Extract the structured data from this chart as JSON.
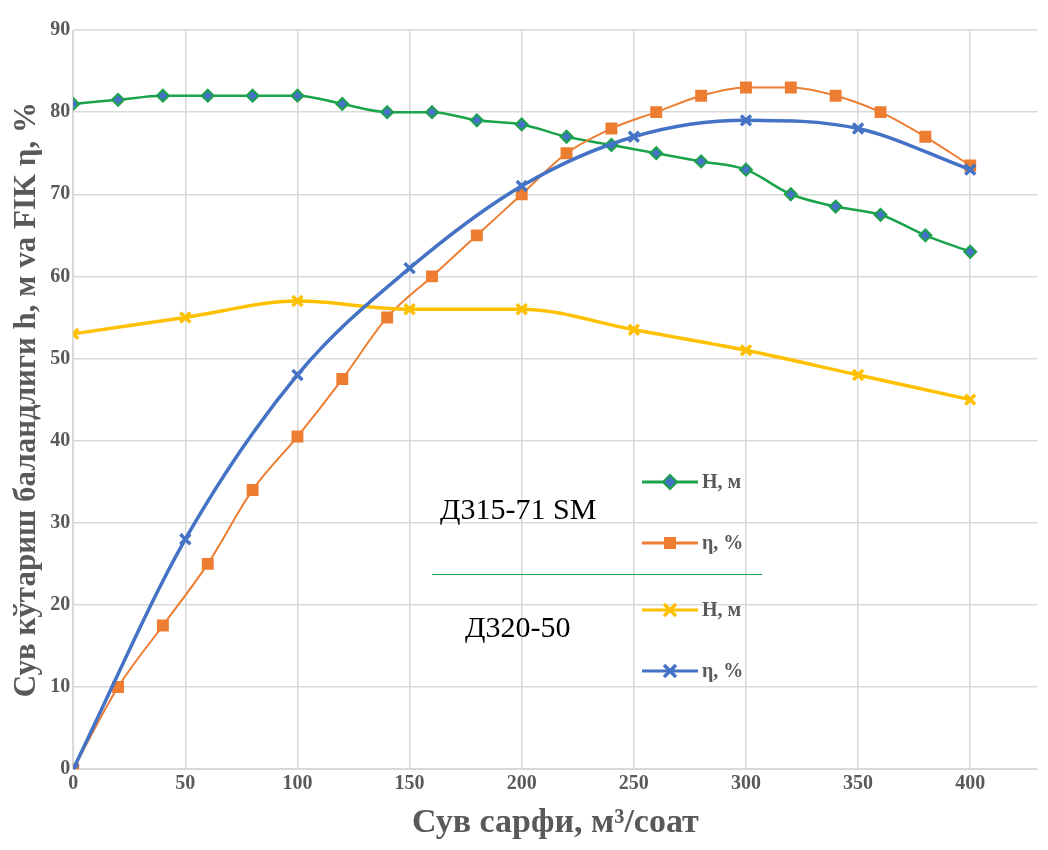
{
  "chart_data": {
    "type": "line",
    "xlabel": "Сув сарфи, м³/соат",
    "ylabel": "Сув кўтариш баландлиги h, м va FIK η, %",
    "xlim": [
      0,
      430
    ],
    "xticks": [
      0,
      50,
      100,
      150,
      200,
      250,
      300,
      350,
      400
    ],
    "ylim": [
      0,
      90
    ],
    "yticks": [
      0,
      10,
      20,
      30,
      40,
      50,
      60,
      70,
      80,
      90
    ],
    "grid": true,
    "legend": "right",
    "annotations": [
      "Д315-71 SM",
      "Д320-50"
    ],
    "series": [
      {
        "name": "H, м",
        "color": "#1aa34a",
        "marker": "diamond",
        "x": [
          0,
          20,
          40,
          60,
          80,
          100,
          120,
          140,
          160,
          180,
          200,
          220,
          240,
          260,
          280,
          300,
          320,
          340,
          360,
          380,
          400
        ],
        "values": [
          81,
          81.5,
          82,
          82,
          82,
          82,
          81,
          80,
          80,
          79,
          78.5,
          77,
          76,
          75,
          74,
          73,
          70,
          68.5,
          67.5,
          65,
          63
        ]
      },
      {
        "name": "η, %",
        "color": "#ed7d31",
        "marker": "square",
        "x": [
          0,
          20,
          40,
          60,
          80,
          100,
          120,
          140,
          160,
          180,
          200,
          220,
          240,
          260,
          280,
          300,
          320,
          340,
          360,
          380,
          400
        ],
        "values": [
          0,
          10,
          17.5,
          25,
          34,
          40.5,
          47.5,
          55,
          60,
          65,
          70,
          75,
          78,
          80,
          82,
          83,
          83,
          82,
          80,
          77,
          73.5
        ]
      },
      {
        "name": "H, м",
        "color": "#ffc000",
        "marker": "cross",
        "x": [
          0,
          50,
          100,
          150,
          200,
          250,
          300,
          350,
          400
        ],
        "values": [
          53,
          55,
          57,
          56,
          56,
          53.5,
          51,
          48,
          45
        ]
      },
      {
        "name": "η, %",
        "color": "#4472c4",
        "marker": "cross",
        "x": [
          0,
          50,
          100,
          150,
          200,
          250,
          300,
          350,
          400
        ],
        "values": [
          0,
          28,
          48,
          61,
          71,
          77,
          79,
          78,
          73
        ]
      }
    ]
  }
}
